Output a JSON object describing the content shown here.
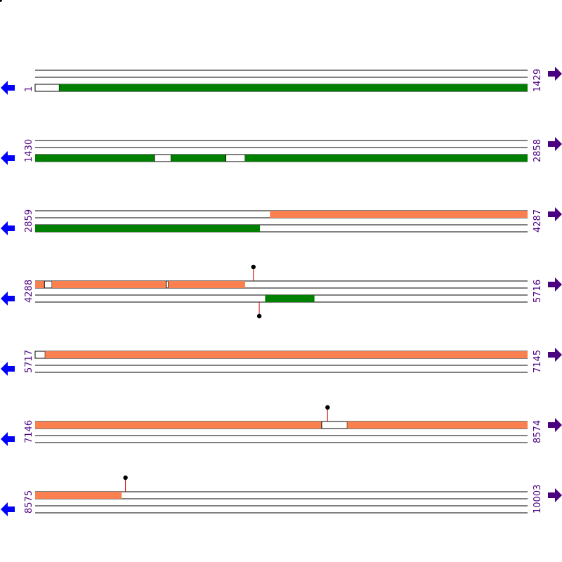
{
  "colors": {
    "forward_feature": "#fa8050",
    "reverse_feature": "#008000",
    "start_arrow": "#0000ff",
    "end_arrow": "#4b0080",
    "coordinate_text": "#4b0080",
    "track_line": "#000000",
    "marker_stem": "#cc0000",
    "marker_head": "#000000"
  },
  "icons": {
    "start": "left-arrow-icon",
    "end": "right-arrow-icon"
  },
  "rows": [
    {
      "start": "1",
      "end": "1429",
      "forward": [],
      "reverse": [
        [
          1,
          71,
          "open"
        ],
        [
          71,
          1429,
          "filled"
        ]
      ],
      "markers": []
    },
    {
      "start": "1430",
      "end": "2858",
      "forward": [],
      "reverse": [
        [
          1430,
          1776,
          "filled"
        ],
        [
          1776,
          1824,
          "open"
        ],
        [
          1824,
          1983,
          "filled"
        ],
        [
          1983,
          2039,
          "open"
        ],
        [
          2039,
          2858,
          "filled"
        ]
      ],
      "markers": []
    },
    {
      "start": "2859",
      "end": "4287",
      "forward": [
        [
          3540,
          4287,
          "filled"
        ]
      ],
      "reverse": [
        [
          2859,
          3511,
          "filled"
        ]
      ],
      "markers": []
    },
    {
      "start": "4288",
      "end": "5716",
      "forward": [
        [
          4288,
          4315,
          "filled"
        ],
        [
          4315,
          4337,
          "open"
        ],
        [
          4337,
          4668,
          "filled"
        ],
        [
          4668,
          4674,
          "open"
        ],
        [
          4674,
          4897,
          "filled"
        ]
      ],
      "reverse": [
        [
          4955,
          5098,
          "filled"
        ]
      ],
      "markers": [
        [
          4921,
          "forward"
        ],
        [
          4938,
          "reverse"
        ]
      ]
    },
    {
      "start": "5717",
      "end": "7145",
      "forward": [
        [
          5717,
          5746,
          "open"
        ],
        [
          5746,
          7145,
          "filled"
        ]
      ],
      "reverse": [],
      "markers": []
    },
    {
      "start": "7146",
      "end": "8574",
      "forward": [
        [
          7146,
          7977,
          "filled"
        ],
        [
          7977,
          8051,
          "open"
        ],
        [
          8051,
          8574,
          "filled"
        ]
      ],
      "reverse": [],
      "markers": [
        [
          7994,
          "forward"
        ]
      ]
    },
    {
      "start": "8575",
      "end": "10003",
      "forward": [
        [
          8575,
          8826,
          "filled"
        ]
      ],
      "reverse": [],
      "markers": [
        [
          8837,
          "forward"
        ]
      ]
    }
  ]
}
